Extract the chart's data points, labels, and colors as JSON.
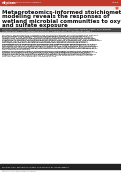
{
  "header_bar_color": "#c0392b",
  "header_text_left": "mSystems",
  "header_text_mid": "| bioRxiv and microbiome",
  "header_text_right": "Article",
  "title_lines": [
    "Metaproteomics-informed stoichiometric",
    "modeling reveals the responses of",
    "wetland microbial communities to oxygen",
    "and sulfate exposure"
  ],
  "title_color": "#111111",
  "title_fontsize": 4.0,
  "orange_dot_color": "#e8501a",
  "authors_line1": "Christopher J. Lawson, Jacob R. Waldbauer, Alexander B. Michmerhuizen, Karla Br. Cantú, Chris Baldauf",
  "authors_line2": "Anthony Shaw †, Alec Arostegui de Martinez †, Daniela Shea † & Christopher Vieser †",
  "authors_color": "#333333",
  "authors_fontsize": 1.5,
  "sep_color": "#aaaaaa",
  "body_color": "#222222",
  "body_fontsize": 1.6,
  "body_para1": "Microbial decomposition pathways are central to nutrient cycling in peat and wetland soils and play a key role in global carbon budgets. However, the extent to which environmental conditions shape the metabolic activities of in situ microbial communities, and together, channel carbon and sulfur cycling reactions, is poorly understood. We used metaproteomics and metabolic modeling to characterize the response of anaerobic CH4 and CO2 production pathways in peatland soil microbial communities following SO4 and O2 amendments. Our results show that SO4 exposure dramatically suppressed CH4 production by 97% and O2 by essentially 100% from the basal rate, while CO2 production was not affected by SO4 amendment. We find that SO4 additions led to higher expression of genes and functional groups of proteins involved in sulfur cycling, with a differential expression that reflects a shift in the dominant electron donors among syntrophic bacteria. This enabled the parameterization of flux balance analysis (FBA) models that predicted SO4 concentrations and CH4 fluxes for each of the experimental conditions, which were validated on 14C-labeled data. The metabolic effects of oxygen and SO4 in soil were also assessed via 13C-label incorporation analysis. A cluster of 10 organism strains, a key factor of so-called methanogenic communities, was identified and supported by metabolic modeling. These combine SO4 and O2 reducing activities with CO2-fixing methanogens that can utilize H2 and acetate. In the methanogenic community, the activity of 56% of the potential community is found through both methanogens and acetotrophs. Our models are able to describe the parallel CH4 and CO2 generation in the communities studied.",
  "body_para2": "Carbon cycle experiments are therefore tied to hydrogen carbon (H:C) ratios and microbial enzymatic carbon transformations of soil organic carbon that allows CO2 capture and processing observable in the peatlands when in situ the transient activity of sulfate-reducing and then iron-reducing organisms appears to produce the microbial community of organic materials. Peatland deposition and oxidation of organic carbon is central to the balance of global carbon cycling. Carbon fixation and transfer to peat microbial pathways requires constant evaluations. This process illustrated in the discussion implies a potential of the peatland for carbon cycling that includes the stoichiometric balanced cycles.",
  "footer_bar_color": "#222222",
  "footer_text": "See also: other and related content. Find out more at: journal website",
  "footer_fontsize": 1.4,
  "bg_color": "#ffffff"
}
